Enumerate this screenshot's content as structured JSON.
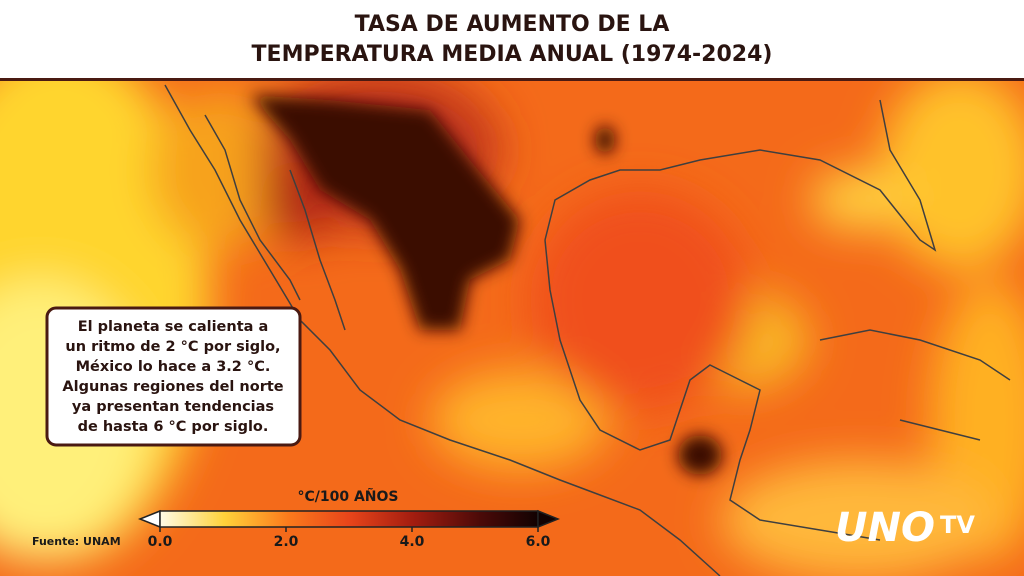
{
  "header": {
    "title_lines": [
      "TASA DE AUMENTO DE LA",
      "TEMPERATURA MEDIA ANUAL (1974-2024)"
    ]
  },
  "callout": {
    "lines": [
      "El planeta se calienta a",
      "un ritmo de 2 °C por siglo,",
      "México lo hace a 3.2 °C.",
      "Algunas regiones del norte",
      "ya presentan tendencias",
      "de hasta 6 °C por siglo."
    ]
  },
  "colorbar": {
    "label": "°C/100 AÑOS",
    "range": [
      0,
      6
    ],
    "ticks": [
      {
        "value": 0,
        "label": "0.0"
      },
      {
        "value": 2,
        "label": "2.0"
      },
      {
        "value": 4,
        "label": "4.0"
      },
      {
        "value": 6,
        "label": "6.0"
      }
    ]
  },
  "source": "Fuente: UNAM",
  "logo": {
    "main": "UNO",
    "sub": "TV"
  }
}
